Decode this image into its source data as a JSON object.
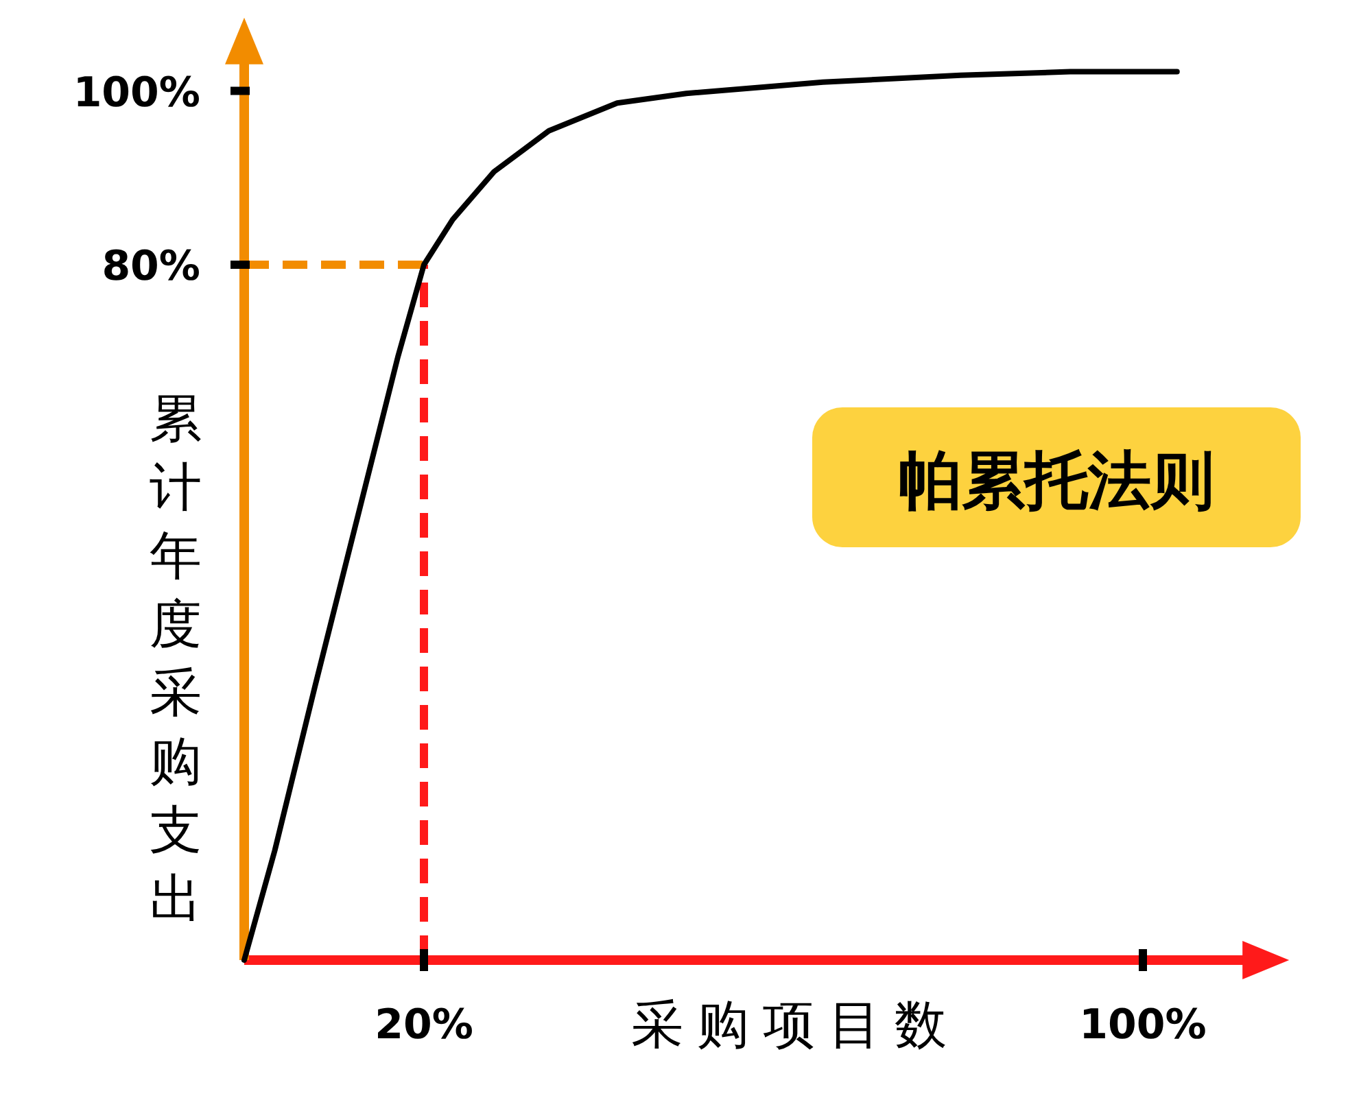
{
  "chart_data": {
    "type": "line",
    "xlabel": "采购项目数",
    "ylabel": "累计年度采购支出",
    "annotations": [
      "帕累托法则"
    ],
    "x": [
      0,
      3.4,
      7.9,
      12.5,
      17.1,
      20,
      23.2,
      27.8,
      33.9,
      41.5,
      49.2,
      64.4,
      79.7,
      91.9,
      103.8
    ],
    "series": [
      {
        "color": "#000000",
        "values": [
          0,
          12.6,
          31.6,
          50.5,
          69.4,
          80,
          85.2,
          90.7,
          95.4,
          98.6,
          99.7,
          101,
          101.8,
          102.2,
          102.2
        ]
      }
    ],
    "xlim": [
      0,
      112
    ],
    "ylim": [
      0,
      104
    ],
    "xticks": [
      {
        "value": 20,
        "label": "20%"
      },
      {
        "value": 100,
        "label": "100%"
      }
    ],
    "yticks": [
      {
        "value": 80,
        "label": "80%"
      },
      {
        "value": 100,
        "label": "100%"
      }
    ],
    "ref_lines": [
      {
        "axis": "x",
        "value": 20,
        "color": "#ff1a1a",
        "line_style": "dashed"
      },
      {
        "axis": "y",
        "value": 80,
        "color": "#f28c00",
        "line_style": "dashed"
      }
    ],
    "marker": "none",
    "line_style": "solid"
  }
}
